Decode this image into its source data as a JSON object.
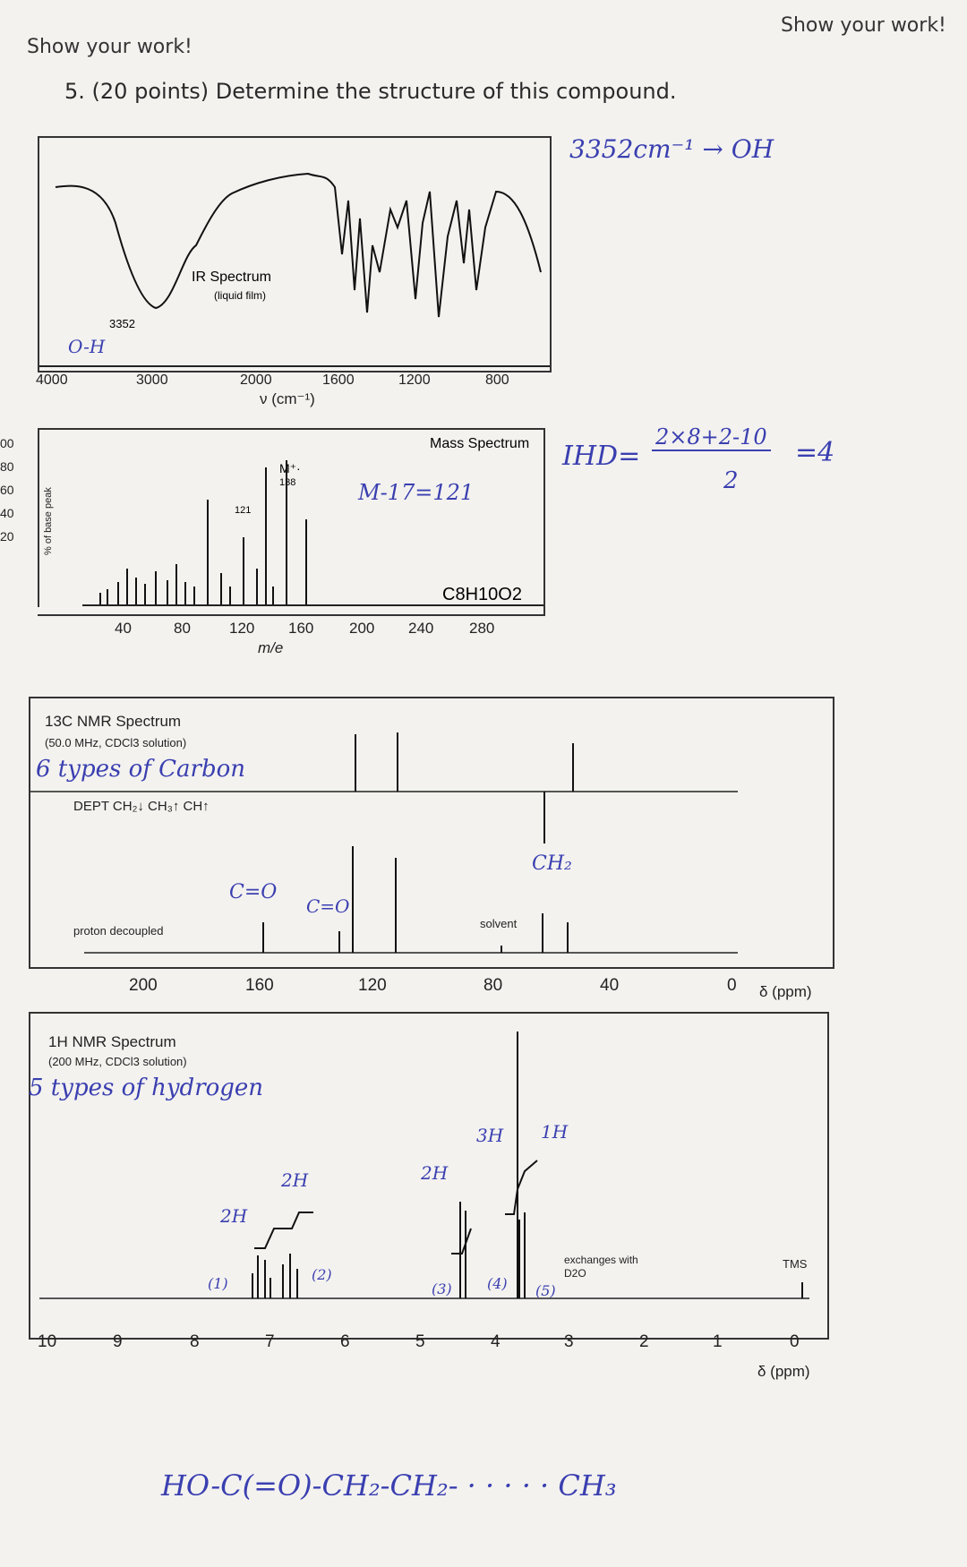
{
  "header": {
    "left": "Show your work!",
    "right": "Show your work!"
  },
  "question": {
    "number": "5.",
    "text": "(20 points) Determine the structure of this compound."
  },
  "ir": {
    "title": "IR Spectrum",
    "subtitle": "(liquid film)",
    "peak_label": "3352",
    "xlabel": "ν (cm⁻¹)",
    "ticks": [
      "4000",
      "3000",
      "2000",
      "1600",
      "1200",
      "800"
    ],
    "annotation_peak": "O-H",
    "annotation_side": "3352cm⁻¹ → OH"
  },
  "ms": {
    "title": "Mass Spectrum",
    "formula": "C8H10O2",
    "ylabel": "% of base peak",
    "yticks": [
      "00",
      "80",
      "60",
      "40",
      "20"
    ],
    "xticks": [
      "40",
      "80",
      "120",
      "160",
      "200",
      "240",
      "280"
    ],
    "xlabel": "m/e",
    "m_label": "M⁺·",
    "m_value": "138",
    "frag_label": "121",
    "annotation_mass": "M-17=121",
    "ihd_label": "IHD=",
    "ihd_num": "2×8+2-10",
    "ihd_den": "2",
    "ihd_result": "=4"
  },
  "c13": {
    "title": "13C NMR Spectrum",
    "subtitle": "(50.0 MHz, CDCl3 solution)",
    "annotation_types": "6 types of Carbon",
    "dept_label": "DEPT  CH₂↓ CH₃↑ CH↑",
    "decoupled_label": "proton decoupled",
    "solvent_label": "solvent",
    "ann_co1": "C=O",
    "ann_co2": "C=O",
    "ann_ch2": "CH₂",
    "xticks": [
      "200",
      "160",
      "120",
      "80",
      "40",
      "0"
    ],
    "xunit": "δ (ppm)"
  },
  "h1": {
    "title": "1H NMR Spectrum",
    "subtitle": "(200 MHz, CDCl3 solution)",
    "annotation_types": "5 types of hydrogen",
    "integrals": [
      "2H",
      "2H",
      "2H",
      "3H",
      "1H"
    ],
    "labels": [
      "(1)",
      "(2)",
      "(3)",
      "(4)",
      "(5)"
    ],
    "exchange_label": "exchanges with D2O",
    "tms_label": "TMS",
    "xticks": [
      "10",
      "9",
      "8",
      "7",
      "6",
      "5",
      "4",
      "3",
      "2",
      "1",
      "0"
    ],
    "xunit": "δ (ppm)"
  },
  "structure": {
    "text": "HO-C(=O)-CH₂-CH₂- · · · · · CH₃"
  }
}
